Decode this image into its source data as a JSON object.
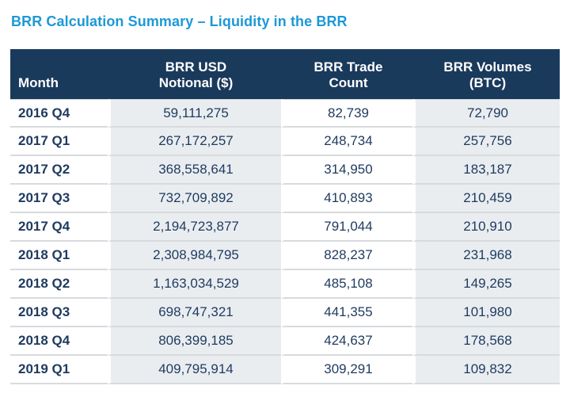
{
  "title": "BRR Calculation Summary – Liquidity in the BRR",
  "colors": {
    "title_blue": "#1c99d6",
    "header_bg": "#1a3a5c",
    "header_text": "#ffffff",
    "body_text": "#1f3a5f",
    "shaded_cell_bg": "#e9edf0",
    "row_separator": "#d7dbde",
    "page_bg": "#ffffff"
  },
  "table": {
    "columns": [
      {
        "key": "month",
        "label": "Month"
      },
      {
        "key": "notional",
        "label": "BRR USD\nNotional ($)"
      },
      {
        "key": "trade_count",
        "label": "BRR Trade\nCount"
      },
      {
        "key": "volumes",
        "label": "BRR Volumes\n(BTC)"
      }
    ],
    "rows": [
      {
        "month": "2016 Q4",
        "notional": "59,111,275",
        "trade_count": "82,739",
        "volumes": "72,790"
      },
      {
        "month": "2017 Q1",
        "notional": "267,172,257",
        "trade_count": "248,734",
        "volumes": "257,756"
      },
      {
        "month": "2017 Q2",
        "notional": "368,558,641",
        "trade_count": "314,950",
        "volumes": "183,187"
      },
      {
        "month": "2017 Q3",
        "notional": "732,709,892",
        "trade_count": "410,893",
        "volumes": "210,459"
      },
      {
        "month": "2017 Q4",
        "notional": "2,194,723,877",
        "trade_count": "791,044",
        "volumes": "210,910"
      },
      {
        "month": "2018 Q1",
        "notional": "2,308,984,795",
        "trade_count": "828,237",
        "volumes": "231,968"
      },
      {
        "month": "2018 Q2",
        "notional": "1,163,034,529",
        "trade_count": "485,108",
        "volumes": "149,265"
      },
      {
        "month": "2018 Q3",
        "notional": "698,747,321",
        "trade_count": "441,355",
        "volumes": "101,980"
      },
      {
        "month": "2018 Q4",
        "notional": "806,399,185",
        "trade_count": "424,637",
        "volumes": "178,568"
      },
      {
        "month": "2019 Q1",
        "notional": "409,795,914",
        "trade_count": "309,291",
        "volumes": "109,832"
      }
    ]
  },
  "chart_data": {
    "type": "table",
    "title": "BRR Calculation Summary – Liquidity in the BRR",
    "categories": [
      "2016 Q4",
      "2017 Q1",
      "2017 Q2",
      "2017 Q3",
      "2017 Q4",
      "2018 Q1",
      "2018 Q2",
      "2018 Q3",
      "2018 Q4",
      "2019 Q1"
    ],
    "series": [
      {
        "name": "BRR USD Notional ($)",
        "values": [
          59111275,
          267172257,
          368558641,
          732709892,
          2194723877,
          2308984795,
          1163034529,
          698747321,
          806399185,
          409795914
        ]
      },
      {
        "name": "BRR Trade Count",
        "values": [
          82739,
          248734,
          314950,
          410893,
          791044,
          828237,
          485108,
          441355,
          424637,
          309291
        ]
      },
      {
        "name": "BRR Volumes (BTC)",
        "values": [
          72790,
          257756,
          183187,
          210459,
          210910,
          231968,
          149265,
          101980,
          178568,
          109832
        ]
      }
    ]
  }
}
